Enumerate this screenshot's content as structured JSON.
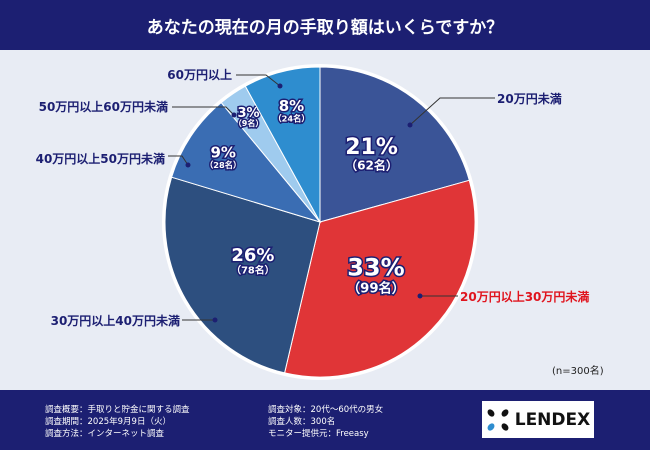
{
  "title": "あなたの現在の月の手取り額はいくらですか？",
  "chart_data": {
    "type": "pie",
    "title": "あなたの現在の月の手取り額はいくらですか？",
    "start": "top-clockwise",
    "slices": [
      {
        "label": "20万円未満",
        "percent": 21,
        "count_label": "（62名）",
        "pct_label": "21%",
        "value": 62,
        "color": "#3a5497",
        "label_color": "#1c1f72"
      },
      {
        "label": "20万円以上30万円未満",
        "percent": 33,
        "count_label": "（99名）",
        "pct_label": "33%",
        "value": 99,
        "color": "#e03537",
        "label_color": "#e0141e"
      },
      {
        "label": "30万円以上40万円未満",
        "percent": 26,
        "count_label": "（78名）",
        "pct_label": "26%",
        "value": 78,
        "color": "#2d4f7f",
        "label_color": "#1c1f72"
      },
      {
        "label": "40万円以上50万円未満",
        "percent": 9,
        "count_label": "（28名）",
        "pct_label": "9%",
        "value": 28,
        "color": "#3a6db3",
        "label_color": "#1c1f72"
      },
      {
        "label": "50万円以上60万円未満",
        "percent": 3,
        "count_label": "（9名）",
        "pct_label": "3%",
        "value": 9,
        "color": "#9fcbee",
        "label_color": "#1c1f72"
      },
      {
        "label": "60万円以上",
        "percent": 8,
        "count_label": "（24名）",
        "pct_label": "8%",
        "value": 24,
        "color": "#2e8dcf",
        "label_color": "#1c1f72"
      }
    ],
    "note": "(n=300名)"
  },
  "footer": {
    "left": [
      "調査概要：手取りと貯金に関する調査",
      "調査期間：2025年9月9日（火）",
      "調査方法：インターネット調査"
    ],
    "right": [
      "調査対象：20代～60代の男女",
      "調査人数：300名",
      "モニター提供元：Freeasy"
    ],
    "logo": "LENDEX"
  }
}
